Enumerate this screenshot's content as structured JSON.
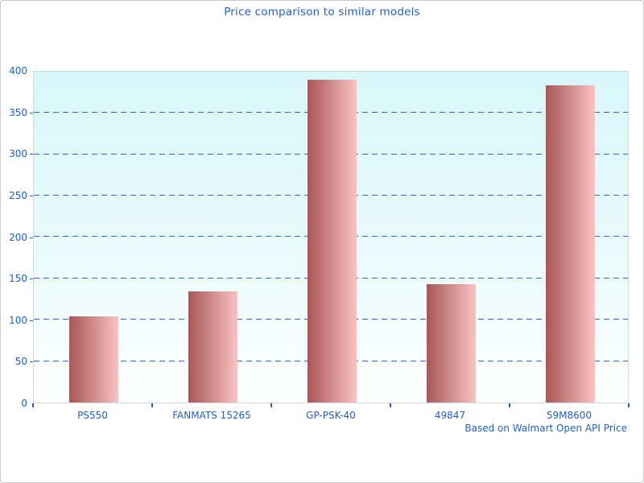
{
  "chart_data": {
    "type": "bar",
    "title": "Price comparison to similar models",
    "categories": [
      "PS550",
      "FANMATS 15265",
      "GP-PSK-40",
      "49847",
      "59M8600"
    ],
    "values": [
      104,
      134,
      390,
      143,
      383
    ],
    "xlabel": "",
    "ylabel": "",
    "ylim": [
      0,
      400
    ],
    "ytick_step": 50,
    "ytick_labels": [
      "0",
      "50",
      "100",
      "150",
      "200",
      "250",
      "300",
      "350",
      "400"
    ],
    "grid": "horizontal-dashed",
    "legend_position": "none",
    "footnote": "Based on Walmart Open API Price",
    "colors": {
      "label_blue": "#1e5ed2",
      "gridline_blue": "#3366cc",
      "tick_blue": "#2a5bd0",
      "bar_gradient_left": "#a85755",
      "bar_gradient_right": "#f9c3c3",
      "plot_bg_top": "#d8f7fa",
      "plot_bg_mid": "#e9fbfc",
      "plot_bg_bottom": "#ffffff",
      "axis_border": "#cfdadd",
      "figure_border": "#cccccc"
    }
  }
}
